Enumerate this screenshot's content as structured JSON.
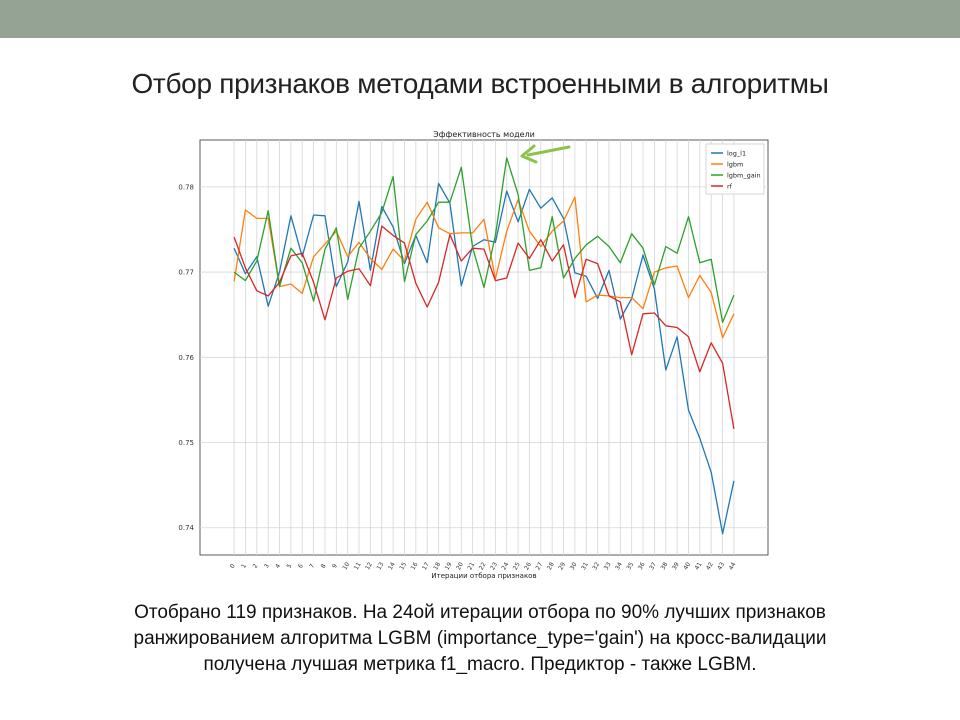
{
  "slide": {
    "title": "Отбор признаков методами встроенными в алгоритмы",
    "caption_lines": [
      "Отобрано 119 признаков. На 24ой итерации отбора по 90% лучших признаков",
      "ранжированием алгоритма LGBM (importance_type='gain') на кросс-валидации",
      "получена лучшая метрика f1_macro. Предиктор - также LGBM."
    ]
  },
  "colors": {
    "band": "#94a393",
    "arrow": "#8cc34a"
  },
  "chart_data": {
    "type": "line",
    "title": "Эффективность модели",
    "xlabel": "Итерации отбора признаков",
    "ylabel": "",
    "x": [
      0,
      1,
      2,
      3,
      4,
      5,
      6,
      7,
      8,
      9,
      10,
      11,
      12,
      13,
      14,
      15,
      16,
      17,
      18,
      19,
      20,
      21,
      22,
      23,
      24,
      25,
      26,
      27,
      28,
      29,
      30,
      31,
      32,
      33,
      34,
      35,
      36,
      37,
      38,
      39,
      40,
      41,
      42,
      43,
      44
    ],
    "xlim": [
      -3,
      47
    ],
    "ylim": [
      0.7368,
      0.7855
    ],
    "yticks": [
      0.74,
      0.75,
      0.76,
      0.77,
      0.78
    ],
    "ytick_labels": [
      "0.74",
      "0.75",
      "0.76",
      "0.77",
      "0.78"
    ],
    "grid": true,
    "legend_position": "top-right",
    "annotation": "arrow pointing to lgbm_gain peak at iteration 24",
    "series": [
      {
        "name": "log_l1",
        "color": "#1f77b4",
        "values": [
          0.7728,
          0.7698,
          0.7718,
          0.766,
          0.77,
          0.7766,
          0.7718,
          0.7767,
          0.7766,
          0.7683,
          0.7712,
          0.7783,
          0.7702,
          0.7777,
          0.7753,
          0.771,
          0.7743,
          0.7711,
          0.7804,
          0.7781,
          0.7684,
          0.773,
          0.7738,
          0.7735,
          0.7795,
          0.7759,
          0.7797,
          0.7775,
          0.7787,
          0.7763,
          0.7699,
          0.7695,
          0.7669,
          0.7702,
          0.7645,
          0.7669,
          0.772,
          0.768,
          0.7585,
          0.7624,
          0.7538,
          0.7505,
          0.7465,
          0.7393,
          0.7455
        ]
      },
      {
        "name": "lgbm",
        "color": "#ff7f0e",
        "values": [
          0.7689,
          0.7773,
          0.7763,
          0.7763,
          0.7683,
          0.7686,
          0.7675,
          0.7718,
          0.7733,
          0.7748,
          0.7718,
          0.7735,
          0.7716,
          0.7703,
          0.7727,
          0.7713,
          0.7762,
          0.7782,
          0.7752,
          0.7745,
          0.7746,
          0.7746,
          0.7762,
          0.7692,
          0.7748,
          0.7785,
          0.7748,
          0.773,
          0.7748,
          0.776,
          0.7788,
          0.7665,
          0.7673,
          0.7672,
          0.767,
          0.767,
          0.7657,
          0.77,
          0.7705,
          0.7707,
          0.767,
          0.7696,
          0.7676,
          0.7623,
          0.7651
        ]
      },
      {
        "name": "lgbm_gain",
        "color": "#2ca02c",
        "values": [
          0.77,
          0.769,
          0.7713,
          0.7772,
          0.7683,
          0.7728,
          0.7711,
          0.7666,
          0.7727,
          0.7752,
          0.7668,
          0.7728,
          0.7748,
          0.777,
          0.7812,
          0.7689,
          0.7744,
          0.776,
          0.7782,
          0.7782,
          0.7823,
          0.7729,
          0.7682,
          0.7743,
          0.7834,
          0.7791,
          0.7702,
          0.7705,
          0.7765,
          0.7693,
          0.7716,
          0.7732,
          0.7742,
          0.773,
          0.7711,
          0.7745,
          0.7728,
          0.7685,
          0.773,
          0.7722,
          0.7765,
          0.7711,
          0.7715,
          0.7641,
          0.7673
        ]
      },
      {
        "name": "rf",
        "color": "#d62728",
        "values": [
          0.7741,
          0.7705,
          0.7678,
          0.7672,
          0.7688,
          0.7719,
          0.7722,
          0.7688,
          0.7644,
          0.7693,
          0.7701,
          0.7704,
          0.7684,
          0.7754,
          0.7743,
          0.7734,
          0.7687,
          0.7659,
          0.7688,
          0.7744,
          0.7713,
          0.7728,
          0.7727,
          0.769,
          0.7693,
          0.7734,
          0.7716,
          0.7738,
          0.7713,
          0.7732,
          0.767,
          0.7715,
          0.771,
          0.7672,
          0.7665,
          0.7603,
          0.7651,
          0.7652,
          0.7637,
          0.7635,
          0.7624,
          0.7583,
          0.7617,
          0.7593,
          0.7516
        ]
      }
    ]
  }
}
